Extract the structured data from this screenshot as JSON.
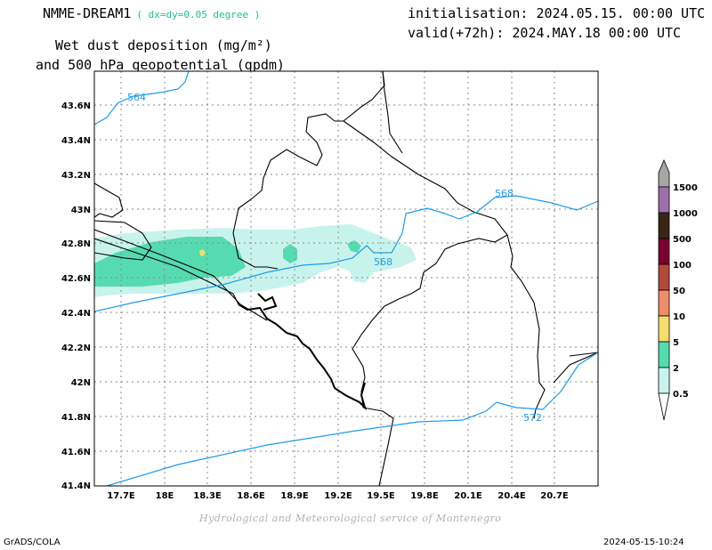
{
  "header": {
    "model": "NMME-DREAM1",
    "resolution": "( dx=dy=0.05 degree )",
    "init": "initialisation: 2024.05.15. 00:00 UTC",
    "valid": "valid(+72h): 2024.MAY.18 00:00 UTC",
    "title_line1": "Wet dust deposition (mg/m²)",
    "title_line2": "and 500 hPa geopotential (gpdm)"
  },
  "map": {
    "lat_labels": [
      "43.6N",
      "43.4N",
      "43.2N",
      "43N",
      "42.8N",
      "42.6N",
      "42.4N",
      "42.2N",
      "42N",
      "41.8N",
      "41.6N",
      "41.4N"
    ],
    "lon_labels": [
      "17.7E",
      "18E",
      "18.3E",
      "18.6E",
      "18.9E",
      "19.2E",
      "19.5E",
      "19.8E",
      "20.1E",
      "20.4E",
      "20.7E"
    ],
    "contour_labels": [
      "564",
      "568",
      "568",
      "572"
    ],
    "colors": {
      "contour": "#1e9be8",
      "border": "#000000",
      "grid": "#888888"
    }
  },
  "legend": {
    "levels": [
      "1500",
      "1000",
      "500",
      "100",
      "50",
      "10",
      "5",
      "2",
      "0.5"
    ],
    "colors": [
      "#a6a6a6",
      "#9c6faa",
      "#3a2418",
      "#7a0030",
      "#b24a3c",
      "#ef8c6a",
      "#f5dd6e",
      "#56dbb0",
      "#c8f3ec"
    ]
  },
  "footer": {
    "credit": "Hydrological and Meteorological service of Montenegro",
    "left": "GrADS/COLA",
    "right": "2024-05-15-10:24"
  }
}
